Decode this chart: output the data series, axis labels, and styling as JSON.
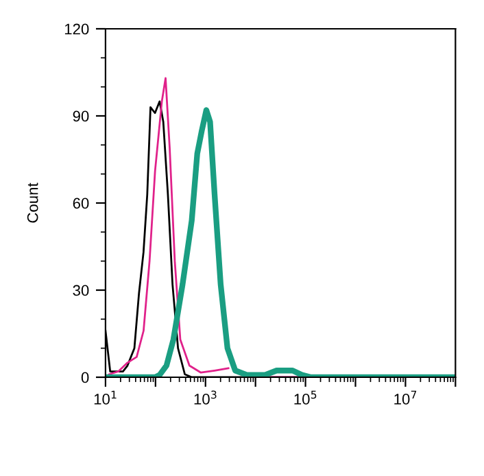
{
  "chart_data": {
    "type": "line",
    "ylabel": "Count",
    "xlim": [
      10,
      100000000
    ],
    "ylim": [
      0,
      120
    ],
    "log": "x",
    "grid": false,
    "marker": "none",
    "line_style": "solid",
    "xticks": [
      {
        "value": 10,
        "label": "10$^{1}$"
      },
      {
        "value": 100,
        "label": null
      },
      {
        "value": 1000,
        "label": "10$^{3}$"
      },
      {
        "value": 10000,
        "label": null
      },
      {
        "value": 100000,
        "label": "10$^{5}$"
      },
      {
        "value": 1000000,
        "label": null
      },
      {
        "value": 10000000,
        "label": "10$^{7}$"
      },
      {
        "value": 100000000,
        "label": null
      }
    ],
    "yticks": [
      0,
      30,
      60,
      90,
      120
    ],
    "series": [
      {
        "color": "#000000",
        "x": [
          10,
          12.4,
          13.2,
          22.3,
          27.5,
          37.8,
          46.8,
          57.5,
          68.4,
          79.4,
          97.7,
          121,
          143,
          177,
          219,
          282,
          386,
          531,
          100000000
        ],
        "values": [
          16,
          2,
          2,
          2,
          4,
          10,
          29,
          43,
          63,
          93,
          91,
          95,
          88,
          63,
          32,
          10,
          1,
          0,
          0
        ]
      },
      {
        "color": "#e0218a",
        "x": [
          10,
          11.8,
          18.1,
          27.5,
          42,
          57.7,
          76,
          98,
          134,
          159,
          192,
          243,
          313,
          477,
          809,
          1520,
          2870,
          4870,
          8260,
          100000000
        ],
        "values": [
          0,
          1,
          2,
          5,
          7,
          16,
          40,
          71,
          95,
          103,
          79,
          40,
          13,
          4,
          1.6,
          2.3,
          3.1,
          null,
          0,
          0
        ]
      },
      {
        "color": "#1a9e82",
        "x": [
          10,
          98,
          121,
          166,
          228,
          348,
          531,
          684,
          845,
          1040,
          1235,
          1520,
          2010,
          2750,
          3940,
          6700,
          15600,
          26400,
          55300,
          84500,
          129000,
          100000000
        ],
        "values": [
          0,
          0,
          0.8,
          4,
          13,
          32,
          54,
          77,
          85,
          92,
          88,
          63,
          32,
          10,
          2.3,
          0.8,
          0.8,
          2.3,
          2.3,
          0.8,
          0,
          0
        ]
      }
    ]
  }
}
